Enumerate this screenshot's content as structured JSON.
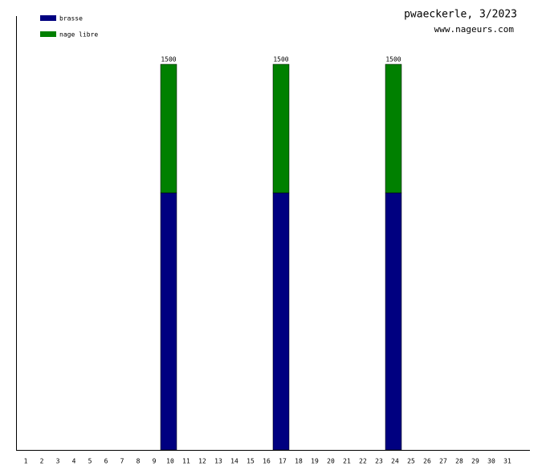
{
  "chart_data": {
    "type": "stacked-bar",
    "title": "pwaeckerle, 3/2023",
    "subtitle": "www.nageurs.com",
    "categories": [
      "1",
      "2",
      "3",
      "4",
      "5",
      "6",
      "7",
      "8",
      "9",
      "10",
      "11",
      "12",
      "13",
      "14",
      "15",
      "16",
      "17",
      "18",
      "19",
      "20",
      "21",
      "22",
      "23",
      "24",
      "25",
      "26",
      "27",
      "28",
      "29",
      "30",
      "31"
    ],
    "series": [
      {
        "name": "brasse",
        "color": "#000080",
        "values": [
          0,
          0,
          0,
          0,
          0,
          0,
          0,
          0,
          0,
          1000,
          0,
          0,
          0,
          0,
          0,
          0,
          1000,
          0,
          0,
          0,
          0,
          0,
          0,
          1000,
          0,
          0,
          0,
          0,
          0,
          0,
          0
        ]
      },
      {
        "name": "nage libre",
        "color": "#008000",
        "values": [
          0,
          0,
          0,
          0,
          0,
          0,
          0,
          0,
          0,
          500,
          0,
          0,
          0,
          0,
          0,
          0,
          500,
          0,
          0,
          0,
          0,
          0,
          0,
          500,
          0,
          0,
          0,
          0,
          0,
          0,
          0
        ]
      }
    ],
    "totals": [
      null,
      null,
      null,
      null,
      null,
      null,
      null,
      null,
      null,
      1500,
      null,
      null,
      null,
      null,
      null,
      null,
      1500,
      null,
      null,
      null,
      null,
      null,
      null,
      1500,
      null,
      null,
      null,
      null,
      null,
      null,
      null
    ],
    "ylim": [
      0,
      1687.5
    ],
    "legend": "upper left"
  }
}
